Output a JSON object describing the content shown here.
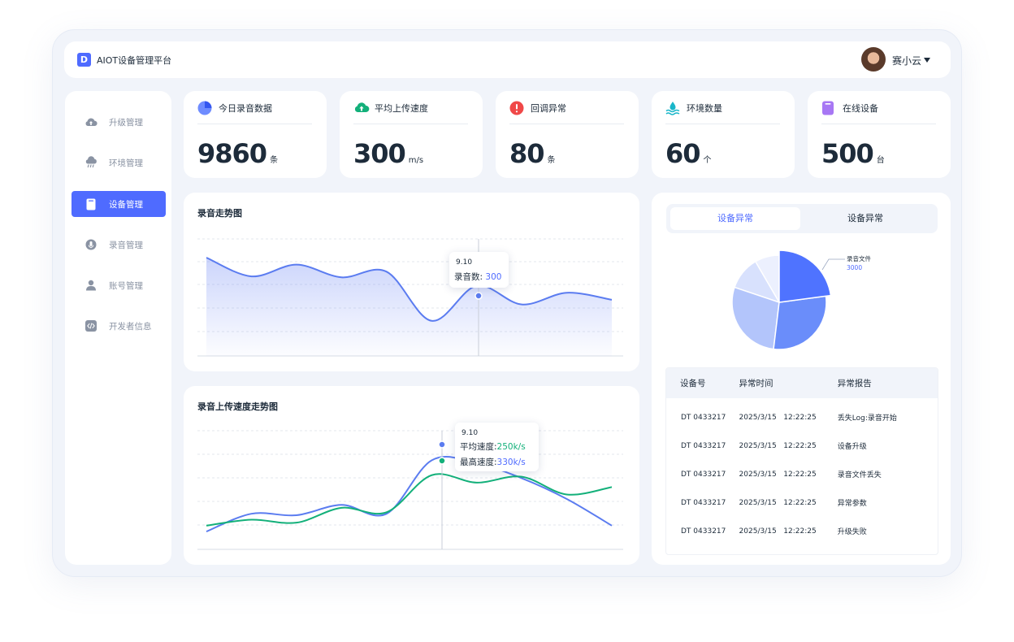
{
  "app": {
    "logo_letter": "D",
    "title": "AIOT设备管理平台",
    "user_name": "赛小云"
  },
  "sidebar": {
    "items": [
      {
        "label": "升级管理",
        "icon": "cloud-upload-icon"
      },
      {
        "label": "环境管理",
        "icon": "cloud-rain-icon"
      },
      {
        "label": "设备管理",
        "icon": "device-icon",
        "active": true
      },
      {
        "label": "录音管理",
        "icon": "microphone-icon"
      },
      {
        "label": "账号管理",
        "icon": "user-icon"
      },
      {
        "label": "开发者信息",
        "icon": "code-icon"
      }
    ]
  },
  "stats": [
    {
      "title": "今日录音数据",
      "value": "9860",
      "unit": "条",
      "icon": "pie-icon"
    },
    {
      "title": "平均上传速度",
      "value": "300",
      "unit": "m/s",
      "icon": "cloud-upload-icon"
    },
    {
      "title": "回调异常",
      "value": "80",
      "unit": "条",
      "icon": "alert-icon"
    },
    {
      "title": "环境数量",
      "value": "60",
      "unit": "个",
      "icon": "water-icon"
    },
    {
      "title": "在线设备",
      "value": "500",
      "unit": "台",
      "icon": "device-icon"
    }
  ],
  "colors": {
    "accent": "#4f6bff",
    "green": "#13b07a",
    "alert": "#f04848",
    "device": "#9b6bf2"
  },
  "chart1": {
    "title": "录音走势图",
    "tooltip": {
      "date": "9.10",
      "label": "录音数:",
      "value": "300"
    },
    "chart_data": {
      "type": "area",
      "series": [
        {
          "values": [
            360,
            320,
            345,
            318,
            330,
            225,
            300,
            260,
            285,
            270
          ]
        }
      ],
      "ylim": [
        150,
        400
      ],
      "grid": true
    }
  },
  "chart2": {
    "title": "录音上传速度走势图",
    "tooltip": {
      "date": "9.10",
      "avg_label": "平均速度:",
      "avg_value": "250k/s",
      "max_label": "最高速度:",
      "max_value": "330k/s"
    },
    "chart_data": {
      "type": "line",
      "series": [
        {
          "color": "#5b7cf0",
          "values": [
            60,
            120,
            115,
            150,
            120,
            300,
            290,
            240,
            170,
            80
          ]
        },
        {
          "color": "#13b07a",
          "values": [
            80,
            100,
            90,
            140,
            125,
            250,
            225,
            245,
            185,
            210
          ]
        }
      ],
      "ylim": [
        0,
        400
      ],
      "grid": true
    }
  },
  "right_panel": {
    "tabs": [
      "设备异常",
      "设备异常"
    ],
    "pie": {
      "label": "录音文件",
      "label_value": "3000",
      "chart_data": {
        "type": "pie",
        "values": [
          3000,
          3800,
          3700,
          1500,
          1100
        ],
        "colors": [
          "#4f73ff",
          "#6a8dfa",
          "#b3c5fb",
          "#d8e1fd",
          "#ecf0fe"
        ]
      }
    },
    "table": {
      "headers": [
        "设备号",
        "异常时间",
        "异常报告"
      ],
      "rows": [
        [
          "DT 0433217",
          "2025/3/15   12:22:25",
          "丢失Log:录音开始"
        ],
        [
          "DT 0433217",
          "2025/3/15   12:22:25",
          "设备升级"
        ],
        [
          "DT 0433217",
          "2025/3/15   12:22:25",
          "录音文件丢失"
        ],
        [
          "DT 0433217",
          "2025/3/15   12:22:25",
          "异常参数"
        ],
        [
          "DT 0433217",
          "2025/3/15   12:22:25",
          "升级失败"
        ]
      ]
    }
  }
}
